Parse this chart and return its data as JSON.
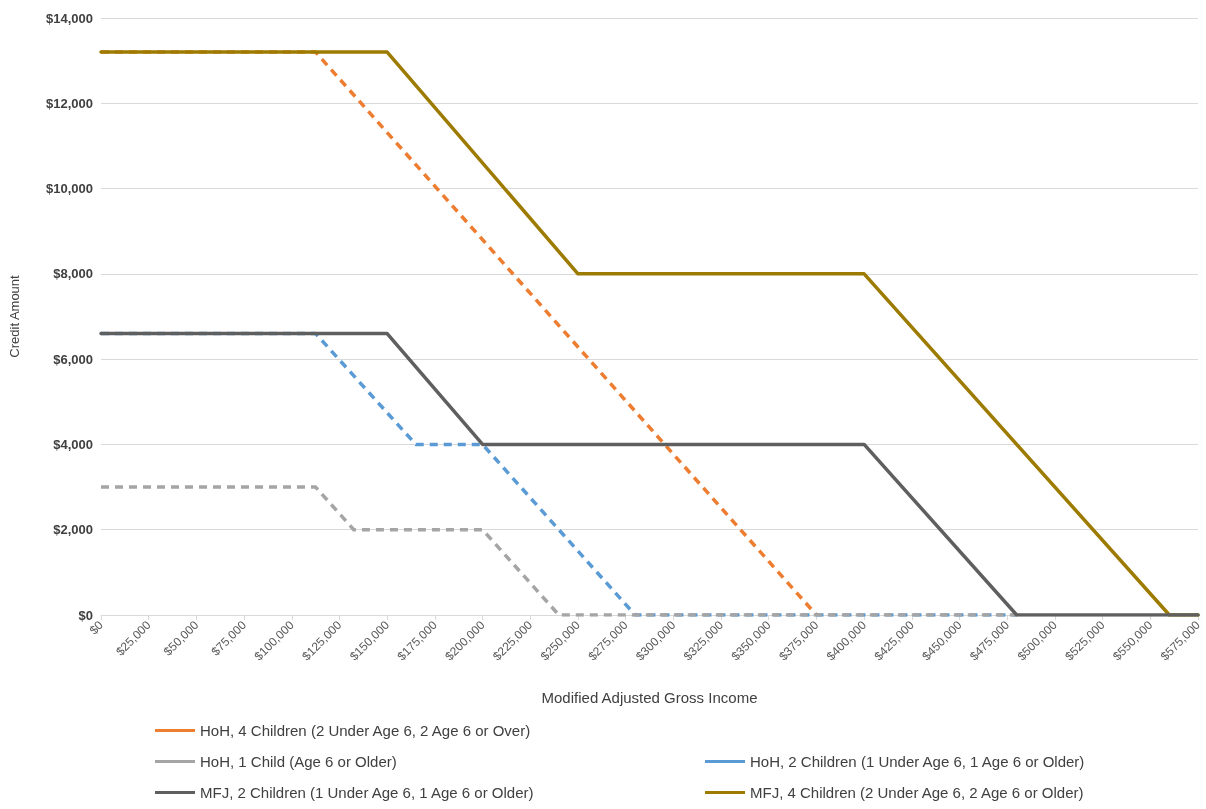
{
  "chart_data": {
    "type": "line",
    "xlabel": "Modified Adjusted Gross Income",
    "ylabel": "Credit Amount",
    "xlim": [
      0,
      575000
    ],
    "xticks": [
      {
        "value": 0,
        "label": "$0"
      },
      {
        "value": 25000,
        "label": "$25,000"
      },
      {
        "value": 50000,
        "label": "$50,000"
      },
      {
        "value": 75000,
        "label": "$75,000"
      },
      {
        "value": 100000,
        "label": "$100,000"
      },
      {
        "value": 125000,
        "label": "$125,000"
      },
      {
        "value": 150000,
        "label": "$150,000"
      },
      {
        "value": 175000,
        "label": "$175,000"
      },
      {
        "value": 200000,
        "label": "$200,000"
      },
      {
        "value": 225000,
        "label": "$225,000"
      },
      {
        "value": 250000,
        "label": "$250,000"
      },
      {
        "value": 275000,
        "label": "$275,000"
      },
      {
        "value": 300000,
        "label": "$300,000"
      },
      {
        "value": 325000,
        "label": "$325,000"
      },
      {
        "value": 350000,
        "label": "$350,000"
      },
      {
        "value": 375000,
        "label": "$375,000"
      },
      {
        "value": 400000,
        "label": "$400,000"
      },
      {
        "value": 425000,
        "label": "$425,000"
      },
      {
        "value": 450000,
        "label": "$450,000"
      },
      {
        "value": 475000,
        "label": "$475,000"
      },
      {
        "value": 500000,
        "label": "$500,000"
      },
      {
        "value": 525000,
        "label": "$525,000"
      },
      {
        "value": 550000,
        "label": "$550,000"
      },
      {
        "value": 575000,
        "label": "$575,000"
      }
    ],
    "ylim": [
      0,
      14000
    ],
    "yticks": [
      {
        "value": 0,
        "label": "$0"
      },
      {
        "value": 2000,
        "label": "$2,000"
      },
      {
        "value": 4000,
        "label": "$4,000"
      },
      {
        "value": 6000,
        "label": "$6,000"
      },
      {
        "value": 8000,
        "label": "$8,000"
      },
      {
        "value": 10000,
        "label": "$10,000"
      },
      {
        "value": 12000,
        "label": "$12,000"
      },
      {
        "value": 14000,
        "label": "$14,000"
      }
    ],
    "grid": "y",
    "legend": "bottom",
    "marker": "none",
    "series": [
      {
        "name": "HoH, 4 Children (2 Under Age 6, 2 Age 6 or Over)",
        "color": "#ed7d31",
        "line_style": "dashed",
        "x": [
          0,
          112500,
          375000
        ],
        "values": [
          13200,
          13200,
          0
        ]
      },
      {
        "name": "HoH, 2 Children (1 Under Age 6, 1 Age 6 or Older)",
        "color": "#5b9bd5",
        "line_style": "dashed",
        "x": [
          0,
          112500,
          165000,
          200000,
          280000,
          480000
        ],
        "values": [
          6600,
          6600,
          4000,
          4000,
          0,
          0
        ]
      },
      {
        "name": "HoH, 1 Child (Age 6 or Older)",
        "color": "#a5a5a5",
        "line_style": "dashed",
        "x": [
          0,
          112500,
          132500,
          200000,
          240000,
          480000
        ],
        "values": [
          3000,
          3000,
          2000,
          2000,
          0,
          0
        ]
      },
      {
        "name": "MFJ, 4 Children (2 Under Age 6, 2 Age 6 or Older)",
        "color": "#9c7b00",
        "line_style": "solid",
        "x": [
          0,
          150000,
          250000,
          400000,
          560000,
          575000
        ],
        "values": [
          13200,
          13200,
          8000,
          8000,
          0,
          0
        ]
      },
      {
        "name": "MFJ, 2 Children (1 Under Age 6, 1 Age 6 or Older)",
        "color": "#5f5f5f",
        "line_style": "solid",
        "x": [
          0,
          150000,
          200000,
          400000,
          480000,
          575000
        ],
        "values": [
          6600,
          6600,
          4000,
          4000,
          0,
          0
        ]
      }
    ]
  }
}
